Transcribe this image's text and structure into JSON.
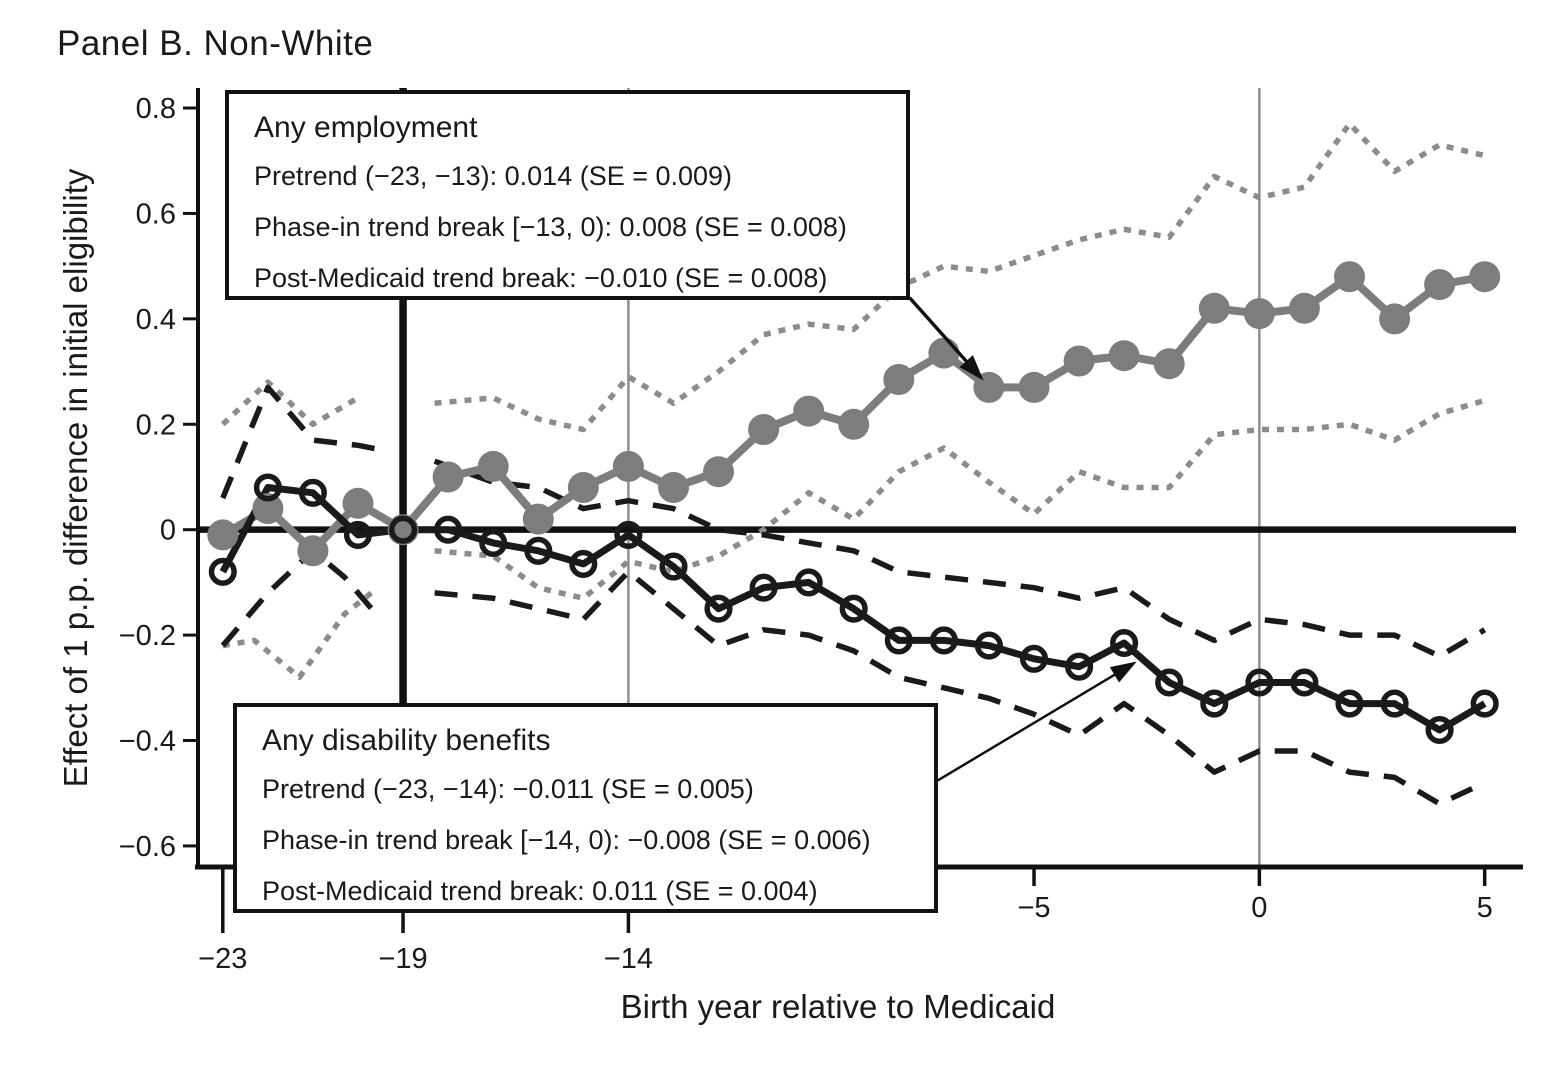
{
  "chart_data": {
    "type": "line",
    "title": "Panel B. Non-White",
    "xlabel": "Birth year relative to Medicaid",
    "ylabel": "Effect of 1 p.p. difference in initial eligibility",
    "xlim": [
      -23.55,
      5.85
    ],
    "ylim": [
      -0.64,
      0.838
    ],
    "grid": false,
    "legend_position": "none",
    "y_ticks": [
      0.8,
      0.6,
      0.4,
      0.2,
      0,
      -0.2,
      -0.4,
      -0.6
    ],
    "x_ticks_long": [
      -23,
      -19,
      -14
    ],
    "x_ticks_short": [
      -5,
      0,
      5
    ],
    "colors": {
      "employment": "#7d7d7d",
      "employment_band": "#8c8c8c",
      "disability": "#1a1a1a",
      "reference_gray": "#8f8f8f",
      "axis": "#111111"
    },
    "reference_lines": [
      {
        "name": "medicaid-intro-vline",
        "axis": "v",
        "at": -19,
        "color": "#111111",
        "width": 7.5
      },
      {
        "name": "phase-in-vline",
        "axis": "v",
        "at": -14,
        "color": "#8f8f8f",
        "width": 2.5
      },
      {
        "name": "year-zero-vline",
        "axis": "v",
        "at": 0,
        "color": "#8f8f8f",
        "width": 2.5
      },
      {
        "name": "zero-effect-hline",
        "axis": "h",
        "at": 0,
        "color": "#111111",
        "width": 6.5
      }
    ],
    "series": [
      {
        "name": "employment-ci-upper-pretrend",
        "color": "#8c8c8c",
        "dash": "7 8",
        "width": 5.5,
        "marker": "none",
        "x": [
          -23,
          -22,
          -21,
          -20
        ],
        "y": [
          0.2,
          0.28,
          0.2,
          0.25
        ]
      },
      {
        "name": "employment-ci-lower-pretrend",
        "color": "#8c8c8c",
        "dash": "7 8",
        "width": 5.5,
        "marker": "none",
        "x": [
          -23,
          -22.3,
          -21.3,
          -20.3,
          -19.7
        ],
        "y": [
          -0.22,
          -0.21,
          -0.28,
          -0.16,
          -0.12
        ]
      },
      {
        "name": "disability-ci-upper-pretrend",
        "color": "#1a1a1a",
        "dash": "23 15",
        "width": 5.5,
        "marker": "none",
        "x": [
          -23,
          -22,
          -21,
          -20,
          -19.4
        ],
        "y": [
          0.06,
          0.27,
          0.17,
          0.16,
          0.15
        ]
      },
      {
        "name": "disability-ci-lower-pretrend",
        "color": "#1a1a1a",
        "dash": "23 15",
        "width": 5.5,
        "marker": "none",
        "x": [
          -23,
          -22,
          -21,
          -20.3,
          -19.6
        ],
        "y": [
          -0.22,
          -0.12,
          -0.04,
          -0.09,
          -0.16
        ]
      },
      {
        "name": "employment-ci-upper",
        "color": "#8c8c8c",
        "dash": "7 8",
        "width": 5.5,
        "marker": "none",
        "x": [
          -18.3,
          -17,
          -16,
          -15,
          -14,
          -13,
          -12,
          -11,
          -10,
          -9,
          -8,
          -7,
          -6,
          -5,
          -4,
          -3,
          -2,
          -1,
          0,
          1,
          2,
          3,
          4,
          5
        ],
        "y": [
          0.24,
          0.25,
          0.21,
          0.19,
          0.29,
          0.24,
          0.3,
          0.37,
          0.39,
          0.38,
          0.46,
          0.5,
          0.49,
          0.52,
          0.55,
          0.57,
          0.555,
          0.67,
          0.63,
          0.65,
          0.77,
          0.68,
          0.73,
          0.71
        ]
      },
      {
        "name": "employment-ci-lower",
        "color": "#8c8c8c",
        "dash": "7 8",
        "width": 5.5,
        "marker": "none",
        "x": [
          -18.3,
          -17,
          -16,
          -15,
          -14,
          -13,
          -12,
          -11,
          -10,
          -9,
          -8,
          -7,
          -6,
          -5,
          -4,
          -3,
          -2,
          -1,
          0,
          1,
          2,
          3,
          4,
          5
        ],
        "y": [
          -0.04,
          -0.05,
          -0.11,
          -0.13,
          -0.06,
          -0.08,
          -0.05,
          0.0,
          0.07,
          0.02,
          0.11,
          0.155,
          0.09,
          0.03,
          0.11,
          0.08,
          0.08,
          0.18,
          0.19,
          0.19,
          0.2,
          0.17,
          0.22,
          0.245
        ]
      },
      {
        "name": "disability-ci-upper",
        "color": "#1a1a1a",
        "dash": "23 15",
        "width": 5.5,
        "marker": "none",
        "x": [
          -18.3,
          -17,
          -16,
          -15,
          -14,
          -13,
          -12,
          -11,
          -10,
          -9,
          -8,
          -7,
          -6,
          -5,
          -4,
          -3,
          -2,
          -1,
          0,
          1,
          2,
          3,
          4,
          5
        ],
        "y": [
          0.13,
          0.09,
          0.08,
          0.04,
          0.055,
          0.04,
          0.0,
          -0.01,
          -0.025,
          -0.04,
          -0.08,
          -0.09,
          -0.1,
          -0.11,
          -0.13,
          -0.11,
          -0.17,
          -0.21,
          -0.17,
          -0.18,
          -0.2,
          -0.2,
          -0.24,
          -0.19
        ]
      },
      {
        "name": "disability-ci-lower",
        "color": "#1a1a1a",
        "dash": "23 15",
        "width": 5.5,
        "marker": "none",
        "x": [
          -18.3,
          -17,
          -16,
          -15,
          -14,
          -13,
          -12,
          -11,
          -10,
          -9,
          -8,
          -7,
          -6,
          -5,
          -4,
          -3,
          -2,
          -1,
          0,
          1,
          2,
          3,
          4,
          5
        ],
        "y": [
          -0.12,
          -0.13,
          -0.15,
          -0.17,
          -0.08,
          -0.15,
          -0.22,
          -0.19,
          -0.2,
          -0.23,
          -0.28,
          -0.3,
          -0.32,
          -0.35,
          -0.39,
          -0.33,
          -0.39,
          -0.46,
          -0.42,
          -0.42,
          -0.46,
          -0.47,
          -0.52,
          -0.48
        ]
      },
      {
        "name": "any-employment",
        "label": "Any employment",
        "color": "#7d7d7d",
        "dash": null,
        "width": 8,
        "marker": "filled-circle",
        "marker_r": 15.5,
        "x": [
          -23,
          -22,
          -21,
          -20,
          -19,
          -18,
          -17,
          -16,
          -15,
          -14,
          -13,
          -12,
          -11,
          -10,
          -9,
          -8,
          -7,
          -6,
          -5,
          -4,
          -3,
          -2,
          -1,
          0,
          1,
          2,
          3,
          4,
          5
        ],
        "y": [
          -0.01,
          0.04,
          -0.04,
          0.05,
          0.0,
          0.1,
          0.12,
          0.02,
          0.08,
          0.12,
          0.08,
          0.11,
          0.19,
          0.225,
          0.2,
          0.285,
          0.335,
          0.27,
          0.27,
          0.32,
          0.33,
          0.315,
          0.42,
          0.41,
          0.42,
          0.48,
          0.4,
          0.465,
          0.48
        ]
      },
      {
        "name": "any-disability-benefits",
        "label": "Any disability benefits",
        "color": "#1a1a1a",
        "dash": null,
        "width": 7,
        "marker": "open-circle",
        "marker_r": 11.3,
        "x": [
          -23,
          -22,
          -21,
          -20,
          -19,
          -18,
          -17,
          -16,
          -15,
          -14,
          -13,
          -12,
          -11,
          -10,
          -9,
          -8,
          -7,
          -6,
          -5,
          -4,
          -3,
          -2,
          -1,
          0,
          1,
          2,
          3,
          4,
          5
        ],
        "y": [
          -0.08,
          0.08,
          0.07,
          -0.01,
          0.0,
          0.0,
          -0.025,
          -0.04,
          -0.065,
          -0.01,
          -0.07,
          -0.15,
          -0.11,
          -0.1,
          -0.15,
          -0.21,
          -0.21,
          -0.22,
          -0.245,
          -0.26,
          -0.215,
          -0.29,
          -0.33,
          -0.29,
          -0.29,
          -0.33,
          -0.33,
          -0.38,
          -0.33
        ]
      }
    ],
    "annotations": {
      "employment": {
        "title": "Any employment",
        "lines": [
          "Pretrend (−23, −13): 0.014 (SE = 0.009)",
          "Phase-in trend break [−13, 0): 0.008 (SE = 0.008)",
          "Post-Medicaid trend break: −0.010 (SE = 0.008)"
        ]
      },
      "disability": {
        "title": "Any disability benefits",
        "lines": [
          "Pretrend (−23, −14): −0.011 (SE = 0.005)",
          "Phase-in trend break [−14, 0): −0.008 (SE = 0.006)",
          "Post-Medicaid trend break: 0.011 (SE = 0.004)"
        ]
      }
    },
    "arrows": [
      {
        "name": "employment-box-arrow",
        "from_x": -7.76,
        "from_y": 0.44,
        "to_x": -6.12,
        "to_y": 0.283,
        "width": 3.5
      },
      {
        "name": "disability-box-arrow",
        "from_x": -7.14,
        "from_y": -0.476,
        "to_x": -2.72,
        "to_y": -0.25,
        "width": 2.5
      }
    ]
  }
}
